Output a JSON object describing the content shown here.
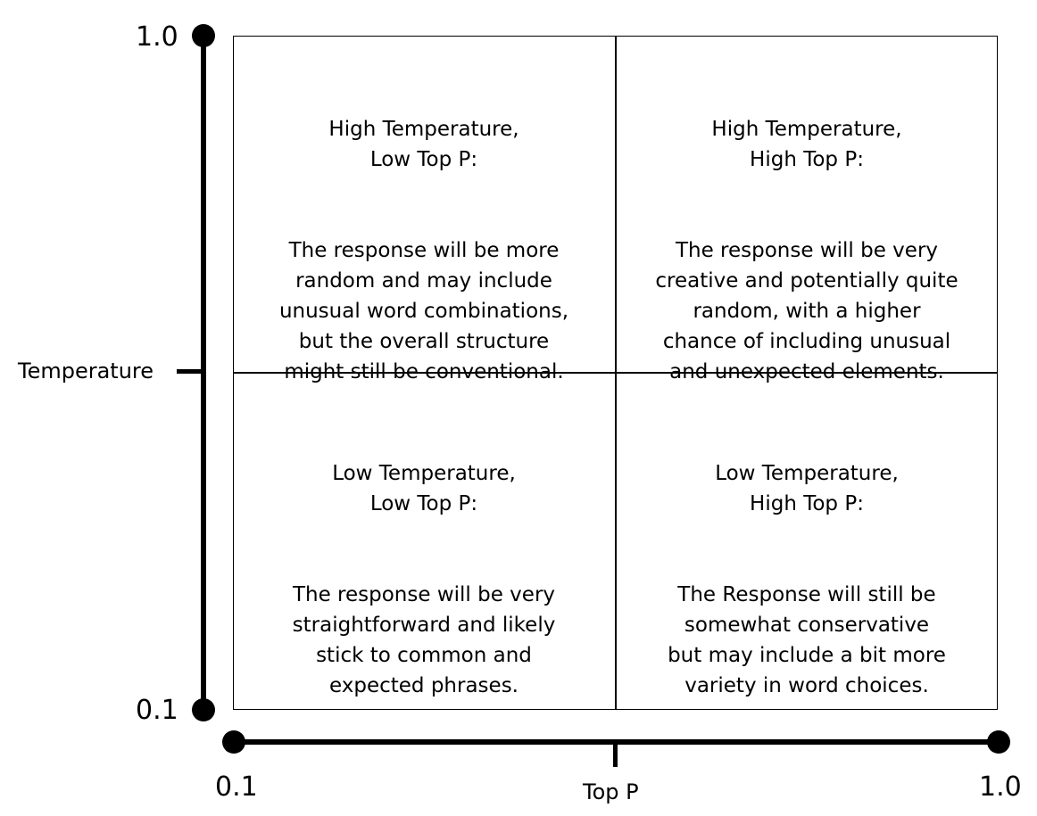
{
  "y_axis": {
    "title": "Temperature",
    "max_label": "1.0",
    "min_label": "0.1"
  },
  "x_axis": {
    "title": "Top P",
    "min_label": "0.1",
    "max_label": "1.0"
  },
  "quadrants": {
    "top_left": {
      "heading": "High Temperature,\nLow Top P:",
      "description": "The response will be more\nrandom and may include\nunusual word combinations,\nbut the overall structure\nmight still be conventional."
    },
    "top_right": {
      "heading": "High Temperature,\nHigh Top P:",
      "description": "The response will be very\ncreative and potentially quite\nrandom, with a higher\nchance of including unusual\nand unexpected elements."
    },
    "bottom_left": {
      "heading": "Low Temperature,\nLow Top P:",
      "description": "The response will be very\nstraightforward and likely\nstick to common and\nexpected phrases."
    },
    "bottom_right": {
      "heading": "Low Temperature,\nHigh Top P:",
      "description": "The Response will still be\nsomewhat conservative\nbut may include a bit more\nvariety in word choices."
    }
  },
  "colors": {
    "line": "#000000",
    "background": "#ffffff"
  }
}
